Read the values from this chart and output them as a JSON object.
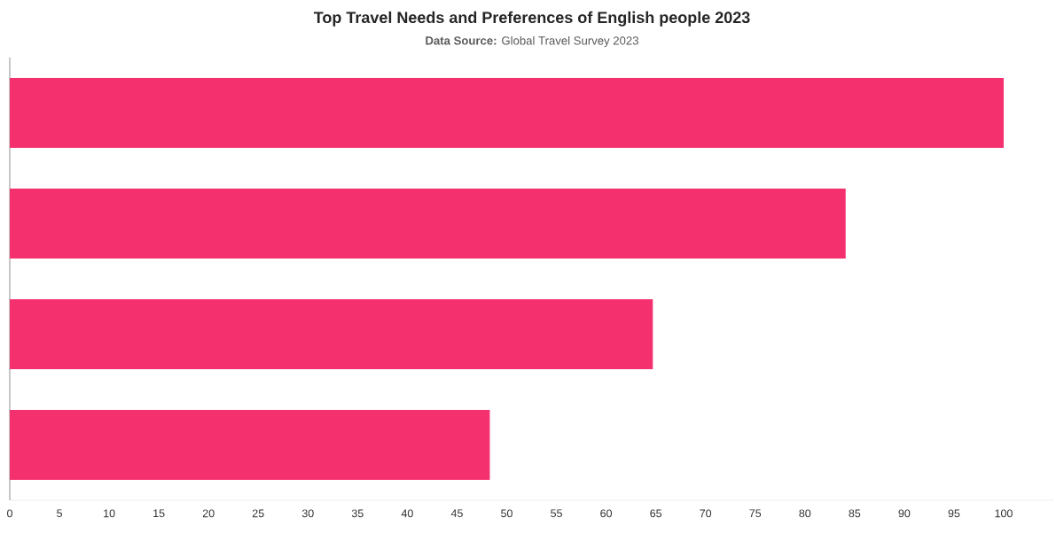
{
  "chart_data": {
    "type": "bar",
    "orientation": "horizontal",
    "title": "Top Travel Needs and Preferences of English people 2023",
    "subtitle": "**Data Source:** Global Travel Survey 2023",
    "categories": [
      null,
      null,
      null,
      null
    ],
    "values": [
      100,
      84.1,
      64.7,
      48.3
    ],
    "color": "#f5306f",
    "xlim": [
      0,
      105
    ],
    "xticks": [
      0,
      5,
      10,
      15,
      20,
      25,
      30,
      35,
      40,
      45,
      50,
      55,
      60,
      65,
      70,
      75,
      80,
      85,
      90,
      95,
      100
    ],
    "grid": false
  }
}
